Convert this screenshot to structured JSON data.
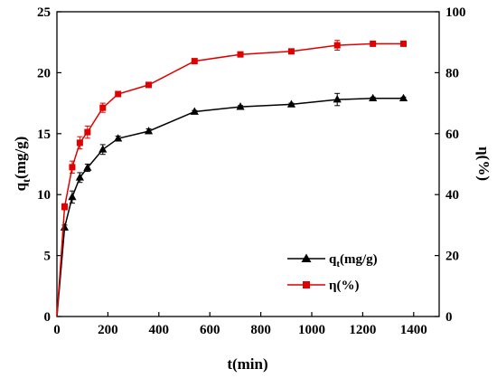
{
  "chart_data": {
    "type": "line",
    "xlabel": "t(min)",
    "ylabel_left_main": "q",
    "ylabel_left_sub": "t",
    "ylabel_left_unit": "(mg/g)",
    "ylabel_right": "η(%)",
    "xlim": [
      0,
      1500
    ],
    "ylim_left": [
      0,
      25
    ],
    "ylim_right": [
      0,
      100
    ],
    "x_ticks": [
      "0",
      "200",
      "400",
      "600",
      "800",
      "1000",
      "1200",
      "1400"
    ],
    "y_left_ticks": [
      "0",
      "5",
      "10",
      "15",
      "20",
      "25"
    ],
    "y_right_ticks": [
      "0",
      "20",
      "40",
      "60",
      "80",
      "100"
    ],
    "legend_position": "bottom-right",
    "series": [
      {
        "name_main": "q",
        "name_sub": "t",
        "name_unit": "(mg/g)",
        "axis": "left",
        "marker": "triangle",
        "color": "#000000",
        "x": [
          0,
          30,
          60,
          90,
          120,
          180,
          240,
          360,
          540,
          720,
          920,
          1100,
          1240,
          1360
        ],
        "values": [
          0,
          7.3,
          9.8,
          11.4,
          12.2,
          13.7,
          14.6,
          15.2,
          16.8,
          17.2,
          17.4,
          17.8,
          17.9,
          17.9
        ],
        "errors": [
          0,
          0.2,
          0.5,
          0.4,
          0.3,
          0.4,
          0.2,
          0.2,
          0.1,
          0.1,
          0.1,
          0.5,
          0.1,
          0.1
        ]
      },
      {
        "name": "η(%)",
        "axis": "right",
        "marker": "square",
        "color": "#e00000",
        "x": [
          0,
          30,
          60,
          90,
          120,
          180,
          240,
          360,
          540,
          720,
          920,
          1100,
          1240,
          1360
        ],
        "values": [
          0,
          36,
          49,
          57,
          60.5,
          68.5,
          73,
          76,
          83.8,
          86,
          87,
          89,
          89.5,
          89.5
        ],
        "errors": [
          0,
          1,
          2,
          2,
          2,
          1.5,
          0.5,
          0.5,
          0.3,
          0.3,
          0.3,
          1.6,
          0.3,
          0.3
        ]
      }
    ]
  }
}
